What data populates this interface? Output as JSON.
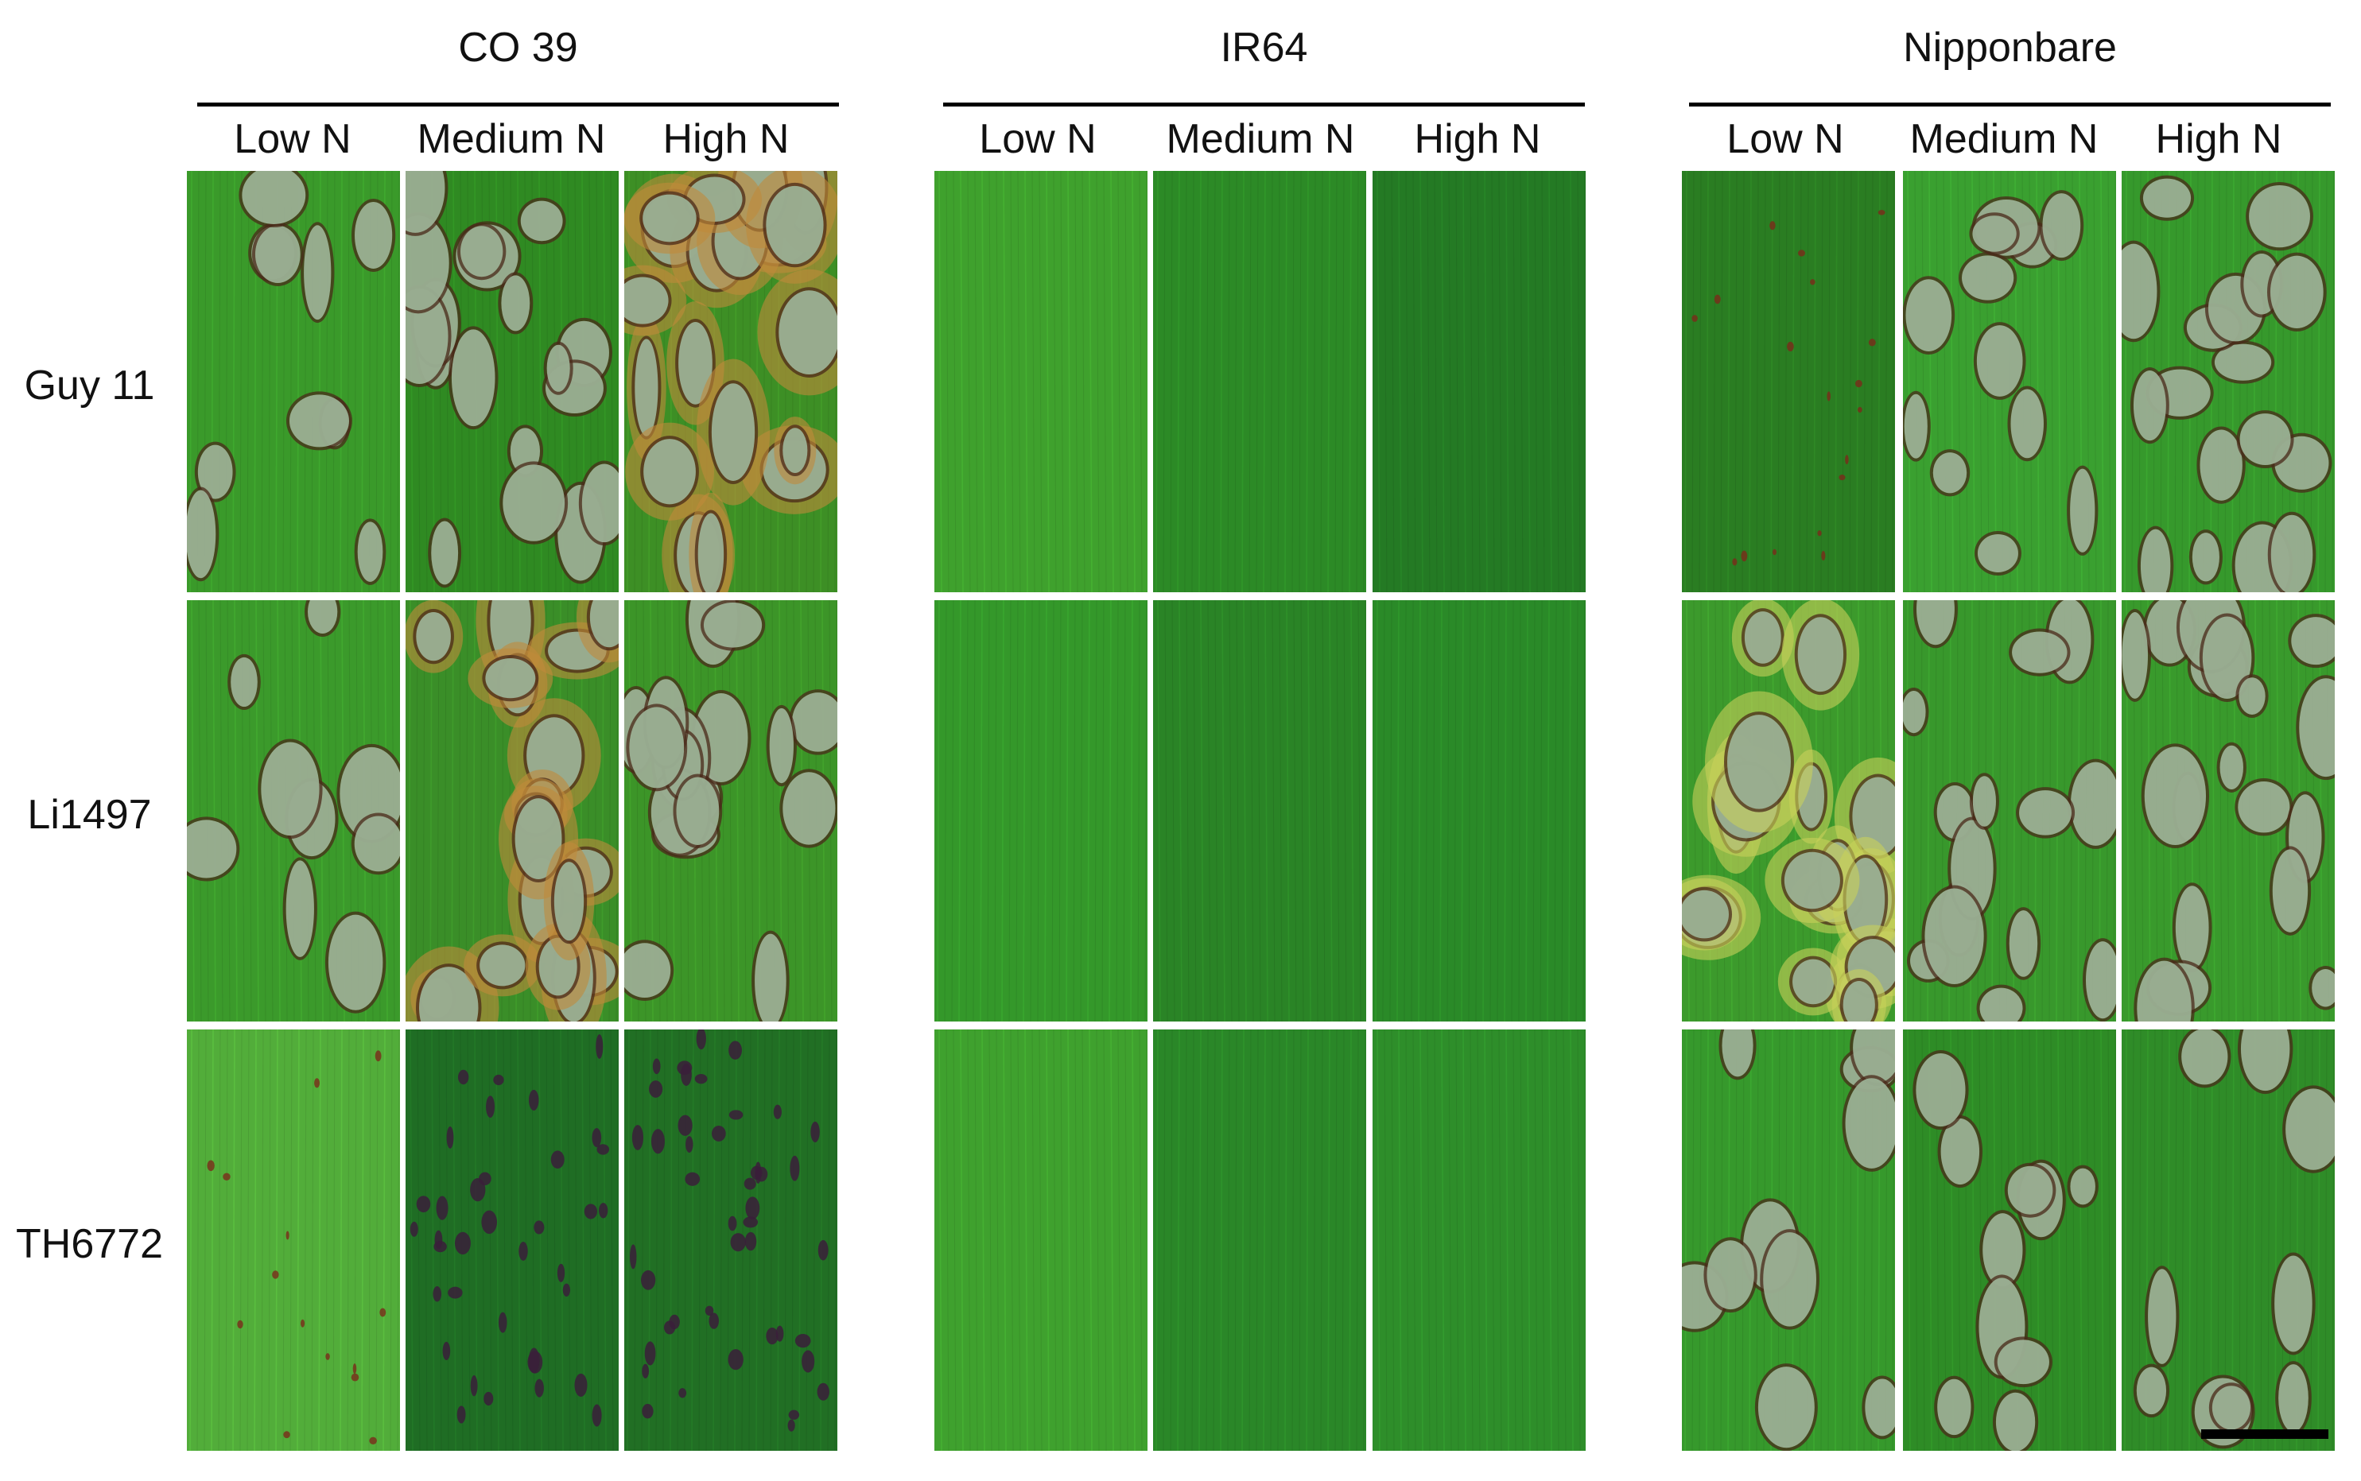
{
  "figure": {
    "cultivars": [
      {
        "name": "CO 39",
        "conditions": [
          "Low N",
          "Medium N",
          "High N"
        ]
      },
      {
        "name": "IR64",
        "conditions": [
          "Low N",
          "Medium N",
          "High N"
        ]
      },
      {
        "name": "Nipponbare",
        "conditions": [
          "Low N",
          "Medium N",
          "High N"
        ]
      }
    ],
    "strains": [
      "Guy 11",
      "Li1497",
      "TH6772"
    ],
    "panels": [
      {
        "strain": "Guy 11",
        "cultivar": "CO 39",
        "condition": "Low N",
        "color": "#3a9a2a",
        "lesions": "large-grey",
        "density": 0.45
      },
      {
        "strain": "Guy 11",
        "cultivar": "CO 39",
        "condition": "Medium N",
        "color": "#2f8a22",
        "lesions": "large-grey-brown",
        "density": 0.8
      },
      {
        "strain": "Guy 11",
        "cultivar": "CO 39",
        "condition": "High N",
        "color": "#3d8f25",
        "lesions": "large-grey-orange",
        "density": 0.85
      },
      {
        "strain": "Guy 11",
        "cultivar": "IR64",
        "condition": "Low N",
        "color": "#3fa12d",
        "lesions": "none",
        "density": 0.0
      },
      {
        "strain": "Guy 11",
        "cultivar": "IR64",
        "condition": "Medium N",
        "color": "#2c8a26",
        "lesions": "none",
        "density": 0.0
      },
      {
        "strain": "Guy 11",
        "cultivar": "IR64",
        "condition": "High N",
        "color": "#247a24",
        "lesions": "none",
        "density": 0.0
      },
      {
        "strain": "Guy 11",
        "cultivar": "Nipponbare",
        "condition": "Low N",
        "color": "#2a7d22",
        "lesions": "small-brown",
        "density": 0.3
      },
      {
        "strain": "Guy 11",
        "cultivar": "Nipponbare",
        "condition": "Medium N",
        "color": "#3aa030",
        "lesions": "large-grey",
        "density": 0.55
      },
      {
        "strain": "Guy 11",
        "cultivar": "Nipponbare",
        "condition": "High N",
        "color": "#36992c",
        "lesions": "large-grey",
        "density": 0.75
      },
      {
        "strain": "Li1497",
        "cultivar": "CO 39",
        "condition": "Low N",
        "color": "#3b9a2b",
        "lesions": "large-grey",
        "density": 0.4
      },
      {
        "strain": "Li1497",
        "cultivar": "CO 39",
        "condition": "Medium N",
        "color": "#3a8e28",
        "lesions": "large-grey-orange",
        "density": 0.85
      },
      {
        "strain": "Li1497",
        "cultivar": "CO 39",
        "condition": "High N",
        "color": "#3c9528",
        "lesions": "large-grey",
        "density": 0.8
      },
      {
        "strain": "Li1497",
        "cultivar": "IR64",
        "condition": "Low N",
        "color": "#34982a",
        "lesions": "none",
        "density": 0.0
      },
      {
        "strain": "Li1497",
        "cultivar": "IR64",
        "condition": "Medium N",
        "color": "#2a8426",
        "lesions": "none",
        "density": 0.0
      },
      {
        "strain": "Li1497",
        "cultivar": "IR64",
        "condition": "High N",
        "color": "#2a8a28",
        "lesions": "none",
        "density": 0.0
      },
      {
        "strain": "Li1497",
        "cultivar": "Nipponbare",
        "condition": "Low N",
        "color": "#3c9a2c",
        "lesions": "large-grey-yellow",
        "density": 0.85
      },
      {
        "strain": "Li1497",
        "cultivar": "Nipponbare",
        "condition": "Medium N",
        "color": "#38982c",
        "lesions": "large-grey",
        "density": 0.7
      },
      {
        "strain": "Li1497",
        "cultivar": "Nipponbare",
        "condition": "High N",
        "color": "#399a2c",
        "lesions": "large-grey",
        "density": 0.8
      },
      {
        "strain": "TH6772",
        "cultivar": "CO 39",
        "condition": "Low N",
        "color": "#52ad3a",
        "lesions": "tiny-brown",
        "density": 0.2
      },
      {
        "strain": "TH6772",
        "cultivar": "CO 39",
        "condition": "Medium N",
        "color": "#1f6d24",
        "lesions": "dark-spots",
        "density": 0.6
      },
      {
        "strain": "TH6772",
        "cultivar": "CO 39",
        "condition": "High N",
        "color": "#216f24",
        "lesions": "dark-spots",
        "density": 0.75
      },
      {
        "strain": "TH6772",
        "cultivar": "IR64",
        "condition": "Low N",
        "color": "#3fa12e",
        "lesions": "none",
        "density": 0.0
      },
      {
        "strain": "TH6772",
        "cultivar": "IR64",
        "condition": "Medium N",
        "color": "#2a8728",
        "lesions": "none",
        "density": 0.0
      },
      {
        "strain": "TH6772",
        "cultivar": "IR64",
        "condition": "High N",
        "color": "#2e8e2a",
        "lesions": "none",
        "density": 0.0
      },
      {
        "strain": "TH6772",
        "cultivar": "Nipponbare",
        "condition": "Low N",
        "color": "#36992c",
        "lesions": "large-grey",
        "density": 0.45
      },
      {
        "strain": "TH6772",
        "cultivar": "Nipponbare",
        "condition": "Medium N",
        "color": "#2e8c26",
        "lesions": "large-grey",
        "density": 0.45
      },
      {
        "strain": "TH6772",
        "cultivar": "Nipponbare",
        "condition": "High N",
        "color": "#2f8c28",
        "lesions": "large-grey",
        "density": 0.4
      }
    ],
    "scale_bar": {
      "label": ""
    }
  }
}
